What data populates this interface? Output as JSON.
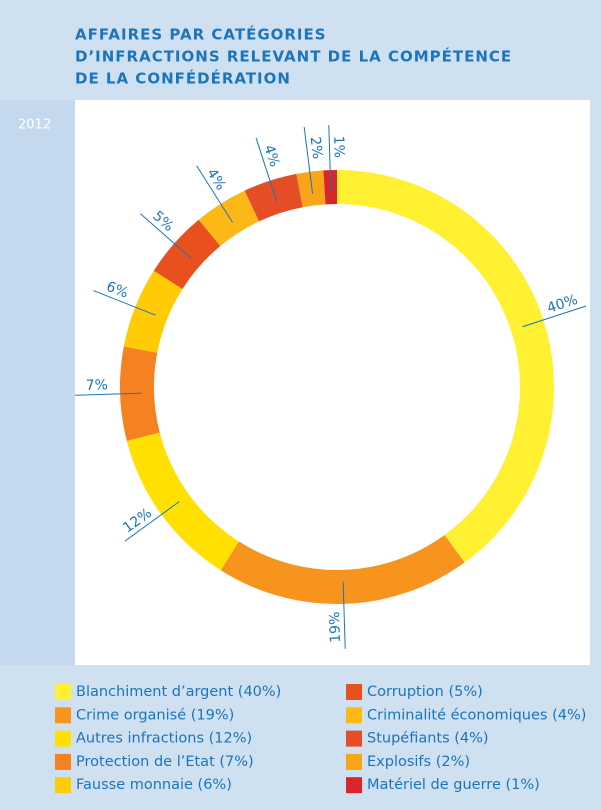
{
  "chart_data": {
    "type": "donut",
    "title": [
      "AFFAIRES PAR CATÉGORIES",
      "D’INFRACTIONS RELEVANT DE LA COMPÉTENCE",
      "DE LA CONFÉDÉRATION"
    ],
    "year": "2012",
    "categories": [
      "Blanchiment d’argent (40%)",
      "Crime organisé (19%)",
      "Autres infractions (12%)",
      "Protection de l’Etat (7%)",
      "Fausse monnaie (6%)",
      "Corruption (5%)",
      "Criminalité économiques (4%)",
      "Stupéfiants (4%)",
      "Explosifs (2%)",
      "Matériel de guerre (1%)"
    ],
    "values": [
      40,
      19,
      12,
      7,
      6,
      5,
      4,
      4,
      2,
      1
    ],
    "value_labels": [
      "40%",
      "19%",
      "12%",
      "7%",
      "6%",
      "5%",
      "4%",
      "4%",
      "2%",
      "1%"
    ],
    "colors": [
      "#fff032",
      "#f7941d",
      "#ffe000",
      "#f58220",
      "#ffcb05",
      "#e8501e",
      "#fbb817",
      "#e54d26",
      "#f9a51a",
      "#d9262b"
    ],
    "legend": "bottom"
  }
}
